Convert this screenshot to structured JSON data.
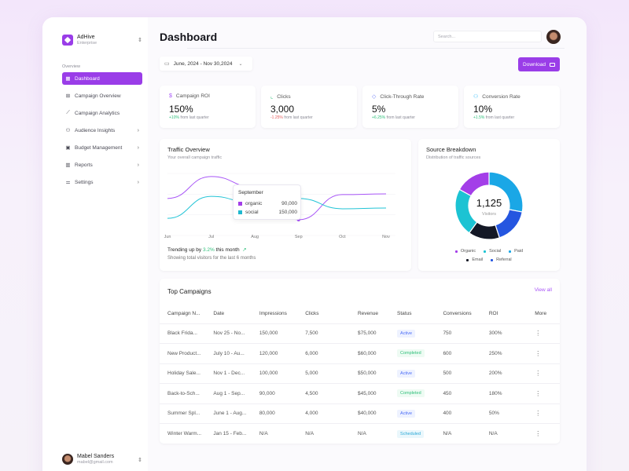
{
  "app": {
    "brand_name": "AdHive",
    "brand_plan": "Enterprise",
    "accent_color": "#9a3de8"
  },
  "sidebar": {
    "section_label": "Overview",
    "items": [
      {
        "label": "Dashboard",
        "icon": "grid-icon",
        "active": true,
        "has_chevron": false
      },
      {
        "label": "Campaign Overview",
        "icon": "table-icon",
        "active": false,
        "has_chevron": false
      },
      {
        "label": "Campaign Analytics",
        "icon": "chart-line-icon",
        "active": false,
        "has_chevron": false
      },
      {
        "label": "Audience Insights",
        "icon": "users-icon",
        "active": false,
        "has_chevron": true
      },
      {
        "label": "Budget Management",
        "icon": "budget-icon",
        "active": false,
        "has_chevron": true
      },
      {
        "label": "Reports",
        "icon": "bar-chart-icon",
        "active": false,
        "has_chevron": true
      },
      {
        "label": "Settings",
        "icon": "sliders-icon",
        "active": false,
        "has_chevron": true
      }
    ],
    "user": {
      "name": "Mabel Sanders",
      "email": "mabel@gmail.com"
    }
  },
  "header": {
    "title": "Dashboard",
    "search_placeholder": "Search...",
    "date_range": "June, 2024 - Nov 30,2024",
    "download_label": "Download"
  },
  "stats": [
    {
      "label": "Campaign ROI",
      "icon": "dollar-icon",
      "icon_color": "#a855f7",
      "value": "150%",
      "delta": "+10%",
      "delta_dir": "up",
      "delta_suffix": " from last quarter"
    },
    {
      "label": "Clicks",
      "icon": "line-chart-icon",
      "icon_color": "#2ebf7a",
      "value": "3,000",
      "delta": "-1.25%",
      "delta_dir": "down",
      "delta_suffix": " from last quarter"
    },
    {
      "label": "Click-Through Rate",
      "icon": "target-icon",
      "icon_color": "#6b7cf7",
      "value": "5%",
      "delta": "+6.25%",
      "delta_dir": "up",
      "delta_suffix": " from last quarter"
    },
    {
      "label": "Conversion Rate",
      "icon": "users-icon",
      "icon_color": "#38bdf8",
      "value": "10%",
      "delta": "+1.5%",
      "delta_dir": "up",
      "delta_suffix": " from last quarter"
    }
  ],
  "traffic": {
    "title": "Traffic Overview",
    "subtitle": "Your overall campaign traffic",
    "trend_prefix": "Trending up by ",
    "trend_pct": "3.2%",
    "trend_suffix": " this month",
    "footer": "Showing total visitors for the last 6 months",
    "tooltip": {
      "title": "September",
      "rows": [
        {
          "label": "organic",
          "value": "90,000",
          "color": "#a33ee8"
        },
        {
          "label": "social",
          "value": "150,000",
          "color": "#1fb8cf"
        }
      ]
    }
  },
  "source": {
    "title": "Source Breakdown",
    "subtitle": "Distribution of traffic sources",
    "total": "1,125",
    "total_label": "Visitors"
  },
  "chart_data": [
    {
      "type": "line",
      "title": "Traffic Overview",
      "x": [
        "Jun",
        "Jul",
        "Aug",
        "Sep",
        "Oct",
        "Nov"
      ],
      "series": [
        {
          "name": "organic",
          "color": "#a855f7",
          "values": [
            150000,
            212000,
            181000,
            90000,
            161000,
            163000
          ]
        },
        {
          "name": "social",
          "color": "#22c4d6",
          "values": [
            94000,
            156000,
            136000,
            150000,
            121000,
            123000
          ]
        }
      ],
      "ylim": [
        50000,
        225000
      ],
      "grid": true,
      "highlight": {
        "x": "Sep"
      }
    },
    {
      "type": "pie",
      "title": "Source Breakdown",
      "donut": true,
      "center_value": "1,125",
      "center_label": "Visitors",
      "slices": [
        {
          "name": "Paid",
          "value": 28,
          "color": "#1aa7e6"
        },
        {
          "name": "Referral",
          "value": 17,
          "color": "#2556e0"
        },
        {
          "name": "Email",
          "value": 15,
          "color": "#141826"
        },
        {
          "name": "Social",
          "value": 23,
          "color": "#1cc3d3"
        },
        {
          "name": "Organic",
          "value": 17,
          "color": "#a33ee8"
        }
      ],
      "legend": [
        "Organic",
        "Social",
        "Paid",
        "Email",
        "Referral"
      ],
      "legend_placement": "bottom"
    }
  ],
  "campaigns": {
    "title": "Top Campaigns",
    "view_all": "View all",
    "columns": [
      "Campaign N...",
      "Date",
      "Impressions",
      "Clicks",
      "Revenue",
      "Status",
      "Conversions",
      "ROI",
      "More"
    ],
    "rows": [
      {
        "name": "Black Frida...",
        "date": "Nov 25 - No...",
        "impressions": "150,000",
        "clicks": "7,500",
        "revenue": "$75,000",
        "status": "Active",
        "conversions": "750",
        "roi": "300%"
      },
      {
        "name": "New Product...",
        "date": "July 10 - Au...",
        "impressions": "120,000",
        "clicks": "6,000",
        "revenue": "$60,000",
        "status": "Completed",
        "conversions": "600",
        "roi": "250%"
      },
      {
        "name": "Holiday Sale...",
        "date": "Nov 1 - Dec...",
        "impressions": "100,000",
        "clicks": "5,000",
        "revenue": "$50,000",
        "status": "Active",
        "conversions": "500",
        "roi": "200%"
      },
      {
        "name": "Back-to-Sch...",
        "date": "Aug 1 - Sep...",
        "impressions": "90,000",
        "clicks": "4,500",
        "revenue": "$45,000",
        "status": "Completed",
        "conversions": "450",
        "roi": "180%"
      },
      {
        "name": "Summer Spl...",
        "date": "June 1 - Aug...",
        "impressions": "80,000",
        "clicks": "4,000",
        "revenue": "$40,000",
        "status": "Active",
        "conversions": "400",
        "roi": "50%"
      },
      {
        "name": "Winter Warm...",
        "date": "Jan 15 - Feb...",
        "impressions": "N/A",
        "clicks": "N/A",
        "revenue": "N/A",
        "status": "Scheduled",
        "conversions": "N/A",
        "roi": "N/A"
      }
    ]
  }
}
